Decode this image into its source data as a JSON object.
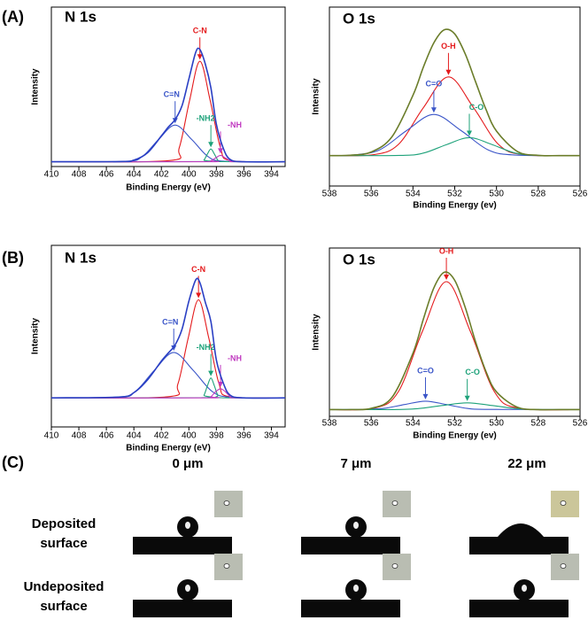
{
  "labels": [
    "(A)",
    "(B)",
    "(C)"
  ],
  "chart_data": [
    {
      "type": "line",
      "title": "N 1s",
      "x_label": "Binding Energy (eV)",
      "y_label": "Intensity",
      "xlim": [
        410,
        393
      ],
      "xticks": [
        410,
        408,
        406,
        404,
        402,
        400,
        398,
        396,
        394
      ],
      "ylim": [
        0,
        100
      ],
      "series": [
        {
          "color": "#2a3fc4",
          "x": [
            410,
            405,
            404,
            403,
            402,
            401.5,
            401,
            400.5,
            400,
            399.5,
            399.2,
            398.8,
            398.4,
            398,
            397.5,
            397,
            396,
            393
          ],
          "values": [
            3,
            3.1,
            4,
            8.7,
            19.2,
            24.7,
            29.5,
            38.1,
            54.9,
            71.7,
            73.4,
            64.1,
            49.4,
            26.5,
            11.5,
            4.4,
            3,
            3
          ]
        },
        {
          "name": "C-N",
          "color": "#e41a1c",
          "x": [
            410,
            401.45,
            400.7,
            399.95,
            399.2,
            398.45,
            397.7,
            396.95,
            393
          ],
          "values": [
            3,
            3.7,
            11.8,
            41.4,
            66,
            41.4,
            11.8,
            3.7,
            3
          ]
        },
        {
          "name": "C=N",
          "color": "#3a55c8",
          "x": [
            410,
            404.6,
            403.4,
            402.2,
            401,
            399.8,
            398.6,
            397.4,
            393
          ],
          "values": [
            3,
            3.3,
            6.2,
            17,
            26,
            17,
            6.2,
            3.3,
            3
          ]
        },
        {
          "name": "-NH2",
          "color": "#1ea27a",
          "x": [
            410,
            399.15,
            398.9,
            398.65,
            398.4,
            398.15,
            397.9,
            397.65,
            393
          ],
          "values": [
            3,
            3.1,
            4.1,
            7.9,
            11,
            7.9,
            4.1,
            3.1,
            3
          ]
        },
        {
          "name": "-NH",
          "color": "#c03ac0",
          "x": [
            410,
            398.75,
            398.4,
            398.05,
            397.7,
            397.35,
            397,
            396.65,
            393
          ],
          "values": [
            3,
            3,
            3.6,
            5.4,
            7,
            5.4,
            3.6,
            3,
            3
          ]
        }
      ]
    },
    {
      "type": "line",
      "title": "O 1s",
      "x_label": "Binding Energy (ev)",
      "y_label": "Intensity",
      "xlim": [
        538,
        526
      ],
      "xticks": [
        538,
        536,
        534,
        532,
        530,
        528,
        526
      ],
      "ylim": [
        0,
        100
      ],
      "series": [
        {
          "color": "#6b7d2a",
          "x": [
            538,
            537,
            536,
            535,
            534,
            533.5,
            533,
            532.5,
            532,
            531.5,
            531,
            530.5,
            530,
            529,
            528,
            527,
            526
          ],
          "values": [
            17,
            17.2,
            19,
            27.6,
            50.7,
            66.5,
            80,
            87.3,
            85,
            73.9,
            58.2,
            42.7,
            30.7,
            19.3,
            17.1,
            17,
            17
          ]
        },
        {
          "name": "O-H",
          "color": "#e41a1c",
          "x": [
            538,
            535.9,
            534.7,
            533.5,
            532.3,
            531.1,
            529.9,
            528.7,
            526
          ],
          "values": [
            17,
            17.5,
            23.2,
            43.8,
            61,
            43.8,
            23.2,
            17.5,
            17
          ]
        },
        {
          "name": "C=O",
          "color": "#3a55c8",
          "x": [
            538,
            536.9,
            535.6,
            534.3,
            533,
            531.7,
            530.4,
            529.1,
            526
          ],
          "values": [
            17,
            17.3,
            20.2,
            31,
            40,
            31,
            20.2,
            17.3,
            17
          ]
        },
        {
          "name": "C-O",
          "color": "#1ea27a",
          "x": [
            538,
            534.6,
            533.5,
            532.4,
            531.3,
            530.2,
            529.1,
            528,
            526
          ],
          "values": [
            17,
            17.1,
            18.4,
            23.1,
            27,
            23.1,
            18.4,
            17.1,
            17
          ]
        }
      ]
    },
    {
      "type": "line",
      "title": "N 1s",
      "x_label": "Binding Energy (eV)",
      "y_label": "Intensity",
      "xlim": [
        410,
        393
      ],
      "xticks": [
        410,
        408,
        406,
        404,
        402,
        400,
        398,
        396,
        394
      ],
      "ylim": [
        0,
        100
      ],
      "series": [
        {
          "color": "#2a3fc4",
          "x": [
            410,
            405,
            404,
            403,
            402,
            401.5,
            401,
            400.5,
            400,
            399.5,
            399.2,
            398.8,
            398.4,
            398,
            397.5,
            397,
            396,
            393
          ],
          "values": [
            16,
            16.5,
            18.9,
            26,
            36.3,
            40.7,
            45.2,
            53.8,
            69.3,
            81,
            79.5,
            68.5,
            58.1,
            36.8,
            24.2,
            17.5,
            16,
            16
          ]
        },
        {
          "name": "C-N",
          "color": "#e41a1c",
          "x": [
            410,
            401.55,
            400.8,
            400.05,
            399.3,
            398.55,
            397.8,
            397.05,
            393
          ],
          "values": [
            16,
            16.6,
            23.6,
            48.9,
            70,
            48.9,
            23.6,
            16.6,
            16
          ]
        },
        {
          "name": "C=N",
          "color": "#3a55c8",
          "x": [
            410,
            405.3,
            403.9,
            402.5,
            401.1,
            399.7,
            398.3,
            396.9,
            393
          ],
          "values": [
            16,
            16.3,
            19.5,
            31.3,
            41,
            31.3,
            19.5,
            16.3,
            16
          ]
        },
        {
          "name": "-NH2",
          "color": "#1ea27a",
          "x": [
            410,
            399.15,
            398.9,
            398.65,
            398.4,
            398.15,
            397.9,
            397.65,
            393
          ],
          "values": [
            16,
            16.1,
            17.5,
            22.7,
            27,
            22.7,
            17.5,
            16.1,
            16
          ]
        },
        {
          "name": "-NH",
          "color": "#c03ac0",
          "x": [
            410,
            398.75,
            398.4,
            398.05,
            397.7,
            397.35,
            397,
            396.65,
            393
          ],
          "values": [
            16,
            16,
            16.7,
            19.4,
            21,
            19.4,
            16.7,
            16,
            16
          ]
        }
      ]
    },
    {
      "type": "line",
      "title": "O 1s",
      "x_label": "Binding Energy (ev)",
      "y_label": "Intensity",
      "xlim": [
        538,
        526
      ],
      "xticks": [
        538,
        536,
        534,
        532,
        530,
        528,
        526
      ],
      "ylim": [
        0,
        100
      ],
      "series": [
        {
          "color": "#6b7d2a",
          "x": [
            538,
            537,
            536,
            535,
            534,
            533.5,
            533,
            532.5,
            532,
            531.5,
            531,
            530.5,
            530,
            529,
            528,
            527,
            526
          ],
          "values": [
            4,
            4,
            4.7,
            11.3,
            37.5,
            57.8,
            76.3,
            85.6,
            80.8,
            64.8,
            44.2,
            26.5,
            14.5,
            5.4,
            4,
            4,
            4
          ]
        },
        {
          "name": "O-H",
          "color": "#e41a1c",
          "x": [
            538,
            535.85,
            534.7,
            533.55,
            532.4,
            531.25,
            530.1,
            528.95,
            526
          ],
          "values": [
            4,
            4.8,
            14.6,
            50.4,
            80,
            50.4,
            14.6,
            4.8,
            4
          ]
        },
        {
          "name": "C=O",
          "color": "#3a55c8",
          "x": [
            538,
            536.4,
            535.4,
            534.4,
            533.4,
            532.4,
            531.4,
            530.4,
            526
          ],
          "values": [
            4,
            4.1,
            4.7,
            7,
            9,
            7,
            4.7,
            4.1,
            4
          ]
        },
        {
          "name": "C-O",
          "color": "#1ea27a",
          "x": [
            538,
            535,
            533.8,
            532.6,
            531.4,
            530.2,
            529,
            527.8,
            526
          ],
          "values": [
            4,
            4,
            4.5,
            6.4,
            8,
            6.4,
            4.5,
            4,
            4
          ]
        }
      ]
    }
  ],
  "contact_angle": {
    "column_labels": [
      "0 μm",
      "7 μm",
      "22 μm"
    ],
    "row_labels": [
      [
        "Deposited",
        "surface"
      ],
      [
        "Undeposited",
        "surface"
      ]
    ]
  }
}
